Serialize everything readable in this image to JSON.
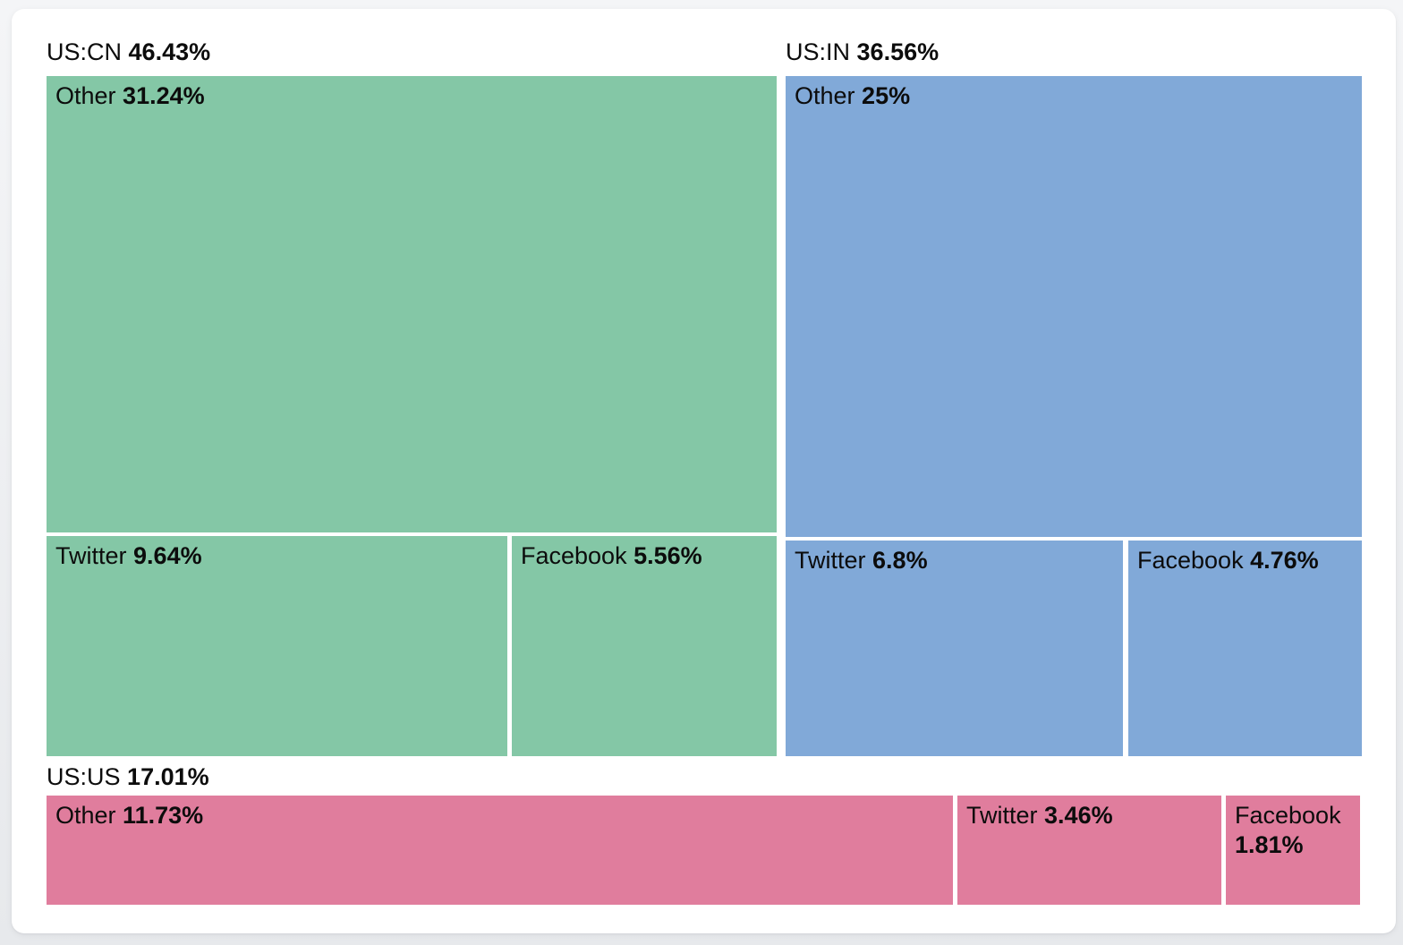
{
  "page": {
    "background_top": "#f4f5f7",
    "background_bottom": "#e7e9ec",
    "card_background": "#ffffff",
    "text_color": "#0c0c0c"
  },
  "chart_data": {
    "type": "treemap",
    "title": "",
    "legend": "none",
    "unit": "%",
    "groups": [
      {
        "name": "US:CN",
        "value": 46.43,
        "display": "46.43%",
        "color": "#84c7a6",
        "cells": [
          {
            "name": "Other",
            "value": 31.24,
            "display": "31.24%"
          },
          {
            "name": "Twitter",
            "value": 9.64,
            "display": "9.64%"
          },
          {
            "name": "Facebook",
            "value": 5.56,
            "display": "5.56%"
          }
        ]
      },
      {
        "name": "US:IN",
        "value": 36.56,
        "display": "36.56%",
        "color": "#81a9d8",
        "cells": [
          {
            "name": "Other",
            "value": 25,
            "display": "25%"
          },
          {
            "name": "Twitter",
            "value": 6.8,
            "display": "6.8%"
          },
          {
            "name": "Facebook",
            "value": 4.76,
            "display": "4.76%"
          }
        ]
      },
      {
        "name": "US:US",
        "value": 17.01,
        "display": "17.01%",
        "color": "#e07d9d",
        "cells": [
          {
            "name": "Other",
            "value": 11.73,
            "display": "11.73%"
          },
          {
            "name": "Twitter",
            "value": 3.46,
            "display": "3.46%"
          },
          {
            "name": "Facebook",
            "value": 1.81,
            "display": "1.81%"
          }
        ]
      }
    ]
  }
}
